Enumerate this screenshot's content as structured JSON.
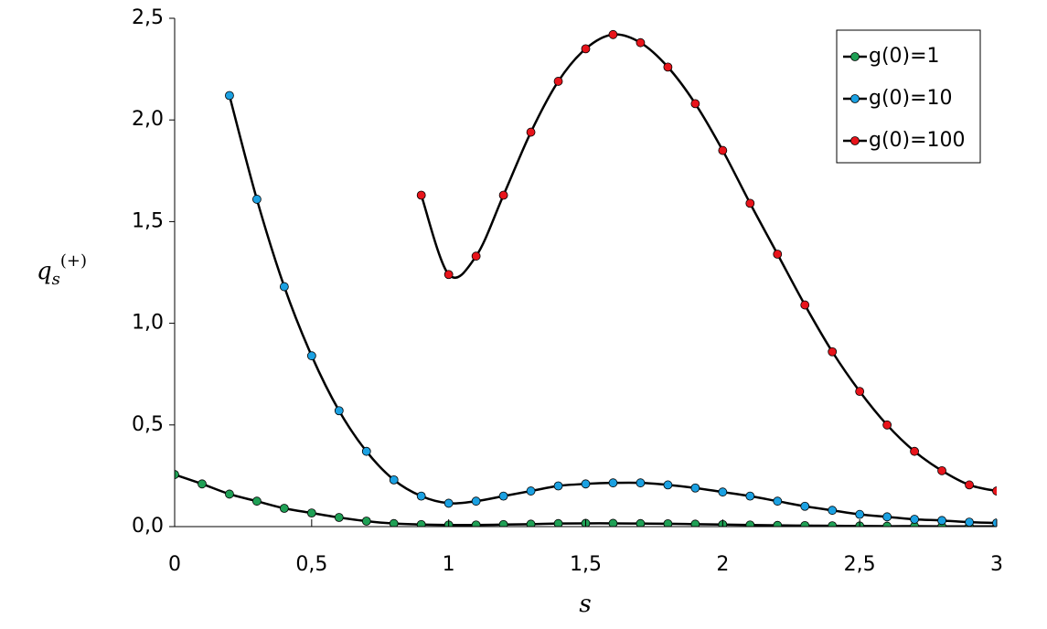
{
  "chart_data": {
    "type": "line",
    "x_label": "s",
    "y_label": {
      "base": "q",
      "sub": "s",
      "sup": "(+)"
    },
    "x": [
      0,
      0.1,
      0.2,
      0.3,
      0.4,
      0.5,
      0.6,
      0.7,
      0.8,
      0.9,
      1.0,
      1.1,
      1.2,
      1.3,
      1.4,
      1.5,
      1.6,
      1.7,
      1.8,
      1.9,
      2.0,
      2.1,
      2.2,
      2.3,
      2.4,
      2.5,
      2.6,
      2.7,
      2.8,
      2.9,
      3.0
    ],
    "series": [
      {
        "name": "g(0)=1",
        "color": "#1fa055",
        "values": [
          0.256,
          0.21,
          0.16,
          0.125,
          0.09,
          0.067,
          0.045,
          0.027,
          0.015,
          0.01,
          0.008,
          0.008,
          0.01,
          0.012,
          0.015,
          0.016,
          0.016,
          0.015,
          0.014,
          0.012,
          0.01,
          0.008,
          0.006,
          0.005,
          0.004,
          0.003,
          0.002,
          0.002,
          0.001,
          0.001,
          0.001
        ]
      },
      {
        "name": "g(0)=10",
        "color": "#1ba1e2",
        "values": [
          null,
          null,
          2.12,
          1.61,
          1.18,
          0.84,
          0.57,
          0.37,
          0.23,
          0.15,
          0.115,
          0.125,
          0.15,
          0.175,
          0.2,
          0.21,
          0.215,
          0.215,
          0.205,
          0.19,
          0.17,
          0.15,
          0.125,
          0.1,
          0.08,
          0.06,
          0.048,
          0.036,
          0.03,
          0.022,
          0.018
        ]
      },
      {
        "name": "g(0)=100",
        "color": "#e8141b",
        "values": [
          null,
          null,
          null,
          null,
          null,
          null,
          null,
          null,
          null,
          1.63,
          1.24,
          1.33,
          1.63,
          1.94,
          2.19,
          2.35,
          2.42,
          2.38,
          2.26,
          2.08,
          1.85,
          1.59,
          1.34,
          1.09,
          0.86,
          0.665,
          0.5,
          0.37,
          0.275,
          0.205,
          0.175
        ]
      }
    ],
    "line_color": "#000000",
    "xlim": [
      0,
      3
    ],
    "ylim": [
      0,
      2.5
    ],
    "xticks": [
      0,
      {
        "value": 0.5,
        "label": "0,5"
      },
      1,
      {
        "value": 1.5,
        "label": "1,5"
      },
      2,
      {
        "value": 2.5,
        "label": "2,5"
      },
      3
    ],
    "yticks": [
      {
        "value": 0,
        "label": "0,0"
      },
      {
        "value": 0.5,
        "label": "0,5"
      },
      {
        "value": 1,
        "label": "1,0"
      },
      {
        "value": 1.5,
        "label": "1,5"
      },
      {
        "value": 2,
        "label": "2,0"
      },
      {
        "value": 2.5,
        "label": "2,5"
      }
    ],
    "grid": false,
    "legend": "top-right"
  }
}
